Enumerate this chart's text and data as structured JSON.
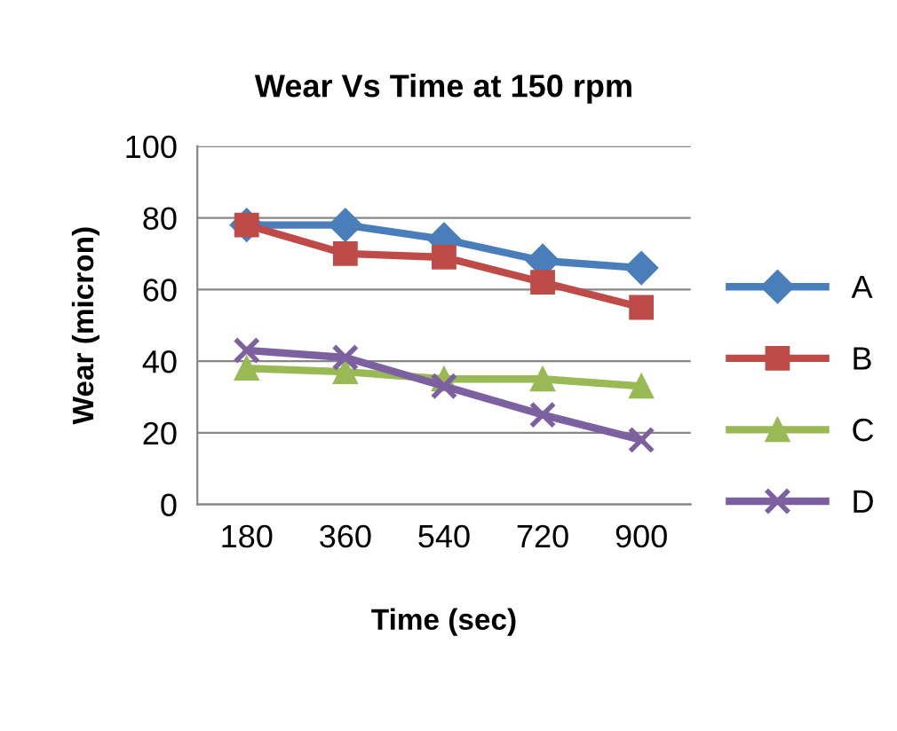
{
  "chart_data": {
    "type": "line",
    "title": "Wear Vs Time at 150 rpm",
    "xlabel": "Time (sec)",
    "ylabel": "Wear (micron)",
    "categories": [
      "180",
      "360",
      "540",
      "720",
      "900"
    ],
    "series": [
      {
        "name": "A",
        "color": "#4a7ebb",
        "marker": "diamond",
        "values": [
          78,
          78,
          74,
          68,
          66
        ]
      },
      {
        "name": "B",
        "color": "#be4b48",
        "marker": "square",
        "values": [
          78,
          70,
          69,
          62,
          55
        ]
      },
      {
        "name": "C",
        "color": "#98b954",
        "marker": "triangle",
        "values": [
          38,
          37,
          35,
          35,
          33
        ]
      },
      {
        "name": "D",
        "color": "#7d60a0",
        "marker": "cross",
        "values": [
          43,
          41,
          33,
          25,
          18
        ]
      }
    ],
    "ylim": [
      0,
      100
    ],
    "yticks": [
      0,
      20,
      40,
      60,
      80,
      100
    ],
    "grid": "y",
    "legend": "right",
    "line_style": "solid"
  }
}
